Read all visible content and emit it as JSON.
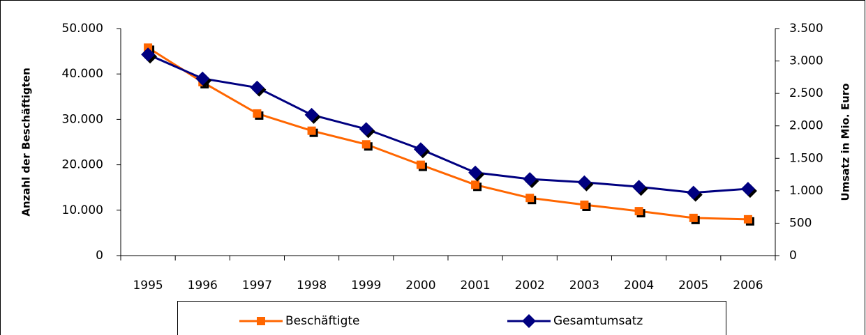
{
  "chart_data": {
    "type": "line",
    "categories": [
      "1995",
      "1996",
      "1997",
      "1998",
      "1999",
      "2000",
      "2001",
      "2002",
      "2003",
      "2004",
      "2005",
      "2006"
    ],
    "ylabel": "Anzahl der Beschäftigten",
    "y2label": "Umsatz in Mio. Euro",
    "ylim": [
      0,
      50000
    ],
    "yticks": [
      0,
      {
        "value": 10000,
        "label": "10.000"
      },
      {
        "value": 20000,
        "label": "20.000"
      },
      {
        "value": 30000,
        "label": "30.000"
      },
      {
        "value": 40000,
        "label": "40.000"
      },
      {
        "value": 50000,
        "label": "50.000"
      }
    ],
    "y2lim": [
      0,
      3500
    ],
    "y2ticks": [
      0,
      500,
      {
        "value": 1000,
        "label": "1.000"
      },
      {
        "value": 1500,
        "label": "1.500"
      },
      {
        "value": 2000,
        "label": "2.000"
      },
      {
        "value": 2500,
        "label": "2.500"
      },
      {
        "value": 3000,
        "label": "3.000"
      },
      {
        "value": 3500,
        "label": "3.500"
      }
    ],
    "series": [
      {
        "name": "Beschäftigte",
        "color": "#ff6600",
        "marker": "square",
        "values": [
          45800,
          38200,
          31300,
          27500,
          24500,
          20000,
          15600,
          12700,
          11200,
          9800,
          8300,
          8000
        ]
      },
      {
        "name": "Gesamtumsatz",
        "color": "#000080",
        "marker": "diamond",
        "axis": "y2",
        "values": [
          3100,
          2730,
          2590,
          2170,
          1950,
          1640,
          1280,
          1180,
          1130,
          1060,
          970,
          1030
        ]
      }
    ]
  }
}
